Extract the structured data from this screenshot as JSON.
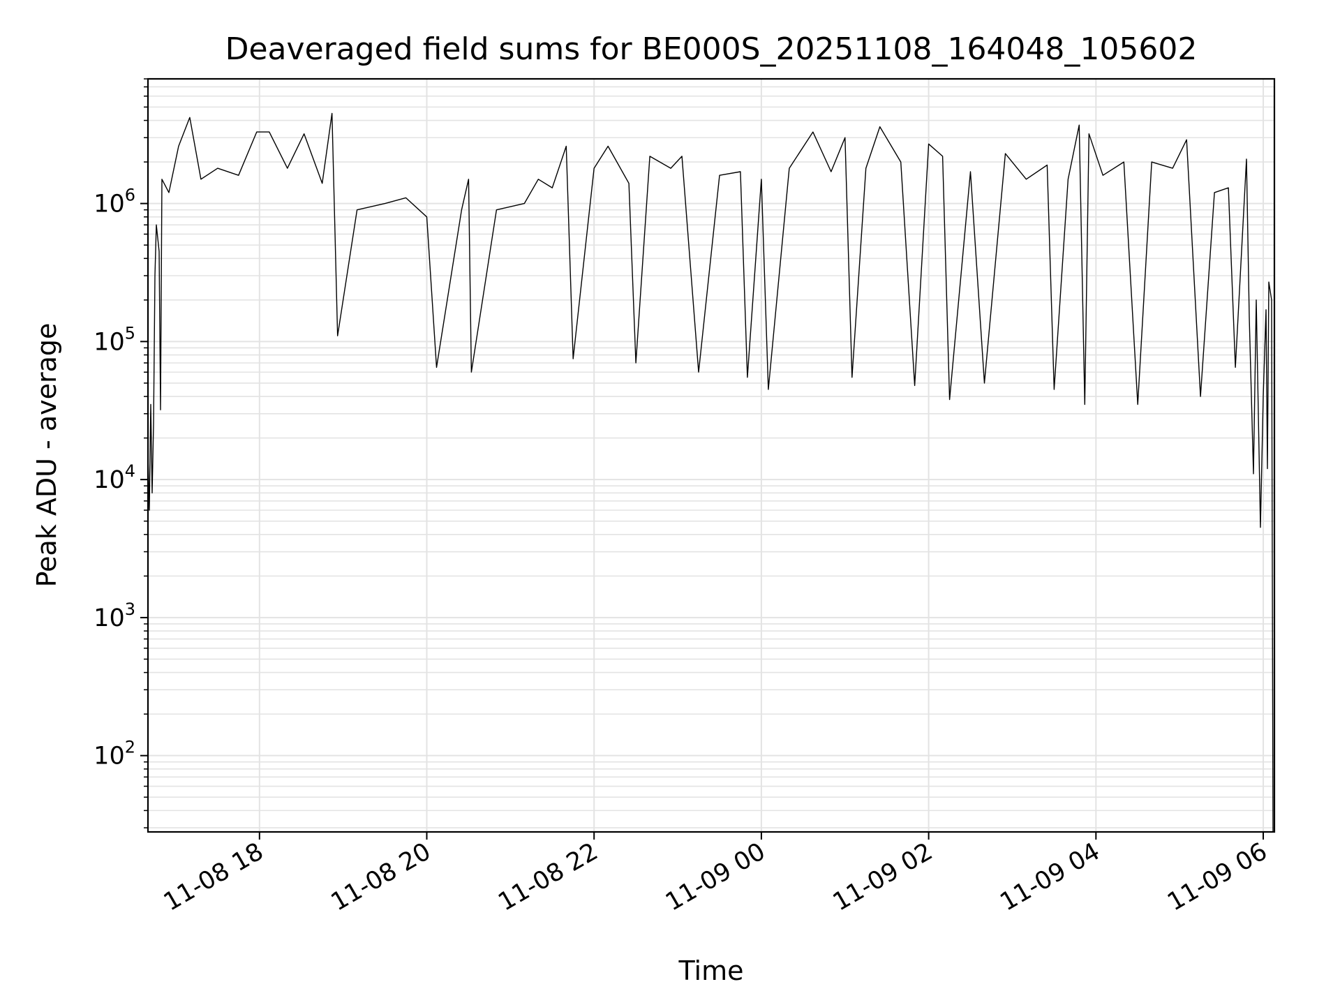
{
  "chart_data": {
    "type": "line",
    "title": "Deaveraged field sums for BE000S_20251108_164048_105602",
    "xlabel": "Time",
    "ylabel": "Peak ADU - average",
    "yscale": "log",
    "ylim": [
      28,
      8000000
    ],
    "xlim": [
      "2025-11-08 16:40",
      "2025-11-09 06:08"
    ],
    "x_ticks": [
      {
        "value": "2025-11-08 18:00",
        "label": "11-08 18"
      },
      {
        "value": "2025-11-08 20:00",
        "label": "11-08 20"
      },
      {
        "value": "2025-11-08 22:00",
        "label": "11-08 22"
      },
      {
        "value": "2025-11-09 00:00",
        "label": "11-09 00"
      },
      {
        "value": "2025-11-09 02:00",
        "label": "11-09 02"
      },
      {
        "value": "2025-11-09 04:00",
        "label": "11-09 04"
      },
      {
        "value": "2025-11-09 06:00",
        "label": "11-09 06"
      }
    ],
    "y_ticks": [
      {
        "value": 100,
        "base": "10",
        "exp": "2"
      },
      {
        "value": 1000,
        "base": "10",
        "exp": "3"
      },
      {
        "value": 10000,
        "base": "10",
        "exp": "4"
      },
      {
        "value": 100000,
        "base": "10",
        "exp": "5"
      },
      {
        "value": 1000000,
        "base": "10",
        "exp": "6"
      }
    ],
    "grid": true,
    "line_color": "#000000",
    "series": [
      {
        "name": "",
        "points": [
          [
            "2025-11-08 16:40",
            15000
          ],
          [
            "2025-11-08 16:41",
            6000
          ],
          [
            "2025-11-08 16:42",
            35000
          ],
          [
            "2025-11-08 16:43",
            8000
          ],
          [
            "2025-11-08 16:44",
            25000
          ],
          [
            "2025-11-08 16:45",
            300000
          ],
          [
            "2025-11-08 16:46",
            700000
          ],
          [
            "2025-11-08 16:48",
            450000
          ],
          [
            "2025-11-08 16:49",
            32000
          ],
          [
            "2025-11-08 16:50",
            1500000
          ],
          [
            "2025-11-08 16:55",
            1200000
          ],
          [
            "2025-11-08 17:02",
            2600000
          ],
          [
            "2025-11-08 17:10",
            4200000
          ],
          [
            "2025-11-08 17:18",
            1500000
          ],
          [
            "2025-11-08 17:30",
            1800000
          ],
          [
            "2025-11-08 17:45",
            1600000
          ],
          [
            "2025-11-08 17:58",
            3300000
          ],
          [
            "2025-11-08 18:07",
            3300000
          ],
          [
            "2025-11-08 18:20",
            1800000
          ],
          [
            "2025-11-08 18:32",
            3200000
          ],
          [
            "2025-11-08 18:45",
            1400000
          ],
          [
            "2025-11-08 18:52",
            4500000
          ],
          [
            "2025-11-08 18:56",
            110000
          ],
          [
            "2025-11-08 19:10",
            900000
          ],
          [
            "2025-11-08 19:30",
            1000000
          ],
          [
            "2025-11-08 19:45",
            1100000
          ],
          [
            "2025-11-08 20:00",
            800000
          ],
          [
            "2025-11-08 20:07",
            65000
          ],
          [
            "2025-11-08 20:25",
            900000
          ],
          [
            "2025-11-08 20:30",
            1500000
          ],
          [
            "2025-11-08 20:32",
            60000
          ],
          [
            "2025-11-08 20:50",
            900000
          ],
          [
            "2025-11-08 21:10",
            1000000
          ],
          [
            "2025-11-08 21:20",
            1500000
          ],
          [
            "2025-11-08 21:30",
            1300000
          ],
          [
            "2025-11-08 21:40",
            2600000
          ],
          [
            "2025-11-08 21:45",
            75000
          ],
          [
            "2025-11-08 22:00",
            1800000
          ],
          [
            "2025-11-08 22:10",
            2600000
          ],
          [
            "2025-11-08 22:25",
            1400000
          ],
          [
            "2025-11-08 22:30",
            70000
          ],
          [
            "2025-11-08 22:40",
            2200000
          ],
          [
            "2025-11-08 22:55",
            1800000
          ],
          [
            "2025-11-08 23:03",
            2200000
          ],
          [
            "2025-11-08 23:15",
            60000
          ],
          [
            "2025-11-08 23:30",
            1600000
          ],
          [
            "2025-11-08 23:45",
            1700000
          ],
          [
            "2025-11-08 23:50",
            55000
          ],
          [
            "2025-11-09 00:00",
            1500000
          ],
          [
            "2025-11-09 00:05",
            45000
          ],
          [
            "2025-11-09 00:20",
            1800000
          ],
          [
            "2025-11-09 00:37",
            3300000
          ],
          [
            "2025-11-09 00:50",
            1700000
          ],
          [
            "2025-11-09 01:00",
            3000000
          ],
          [
            "2025-11-09 01:05",
            55000
          ],
          [
            "2025-11-09 01:15",
            1800000
          ],
          [
            "2025-11-09 01:25",
            3600000
          ],
          [
            "2025-11-09 01:40",
            2000000
          ],
          [
            "2025-11-09 01:50",
            48000
          ],
          [
            "2025-11-09 02:00",
            2700000
          ],
          [
            "2025-11-09 02:10",
            2200000
          ],
          [
            "2025-11-09 02:15",
            38000
          ],
          [
            "2025-11-09 02:30",
            1700000
          ],
          [
            "2025-11-09 02:40",
            50000
          ],
          [
            "2025-11-09 02:55",
            2300000
          ],
          [
            "2025-11-09 03:10",
            1500000
          ],
          [
            "2025-11-09 03:25",
            1900000
          ],
          [
            "2025-11-09 03:30",
            45000
          ],
          [
            "2025-11-09 03:40",
            1500000
          ],
          [
            "2025-11-09 03:48",
            3700000
          ],
          [
            "2025-11-09 03:52",
            35000
          ],
          [
            "2025-11-09 03:55",
            3200000
          ],
          [
            "2025-11-09 04:05",
            1600000
          ],
          [
            "2025-11-09 04:20",
            2000000
          ],
          [
            "2025-11-09 04:30",
            35000
          ],
          [
            "2025-11-09 04:40",
            2000000
          ],
          [
            "2025-11-09 04:55",
            1800000
          ],
          [
            "2025-11-09 05:05",
            2900000
          ],
          [
            "2025-11-09 05:15",
            40000
          ],
          [
            "2025-11-09 05:25",
            1200000
          ],
          [
            "2025-11-09 05:35",
            1300000
          ],
          [
            "2025-11-09 05:40",
            65000
          ],
          [
            "2025-11-09 05:48",
            2100000
          ],
          [
            "2025-11-09 05:50",
            150000
          ],
          [
            "2025-11-09 05:53",
            11000
          ],
          [
            "2025-11-09 05:55",
            200000
          ],
          [
            "2025-11-09 05:58",
            4500
          ],
          [
            "2025-11-09 06:00",
            40000
          ],
          [
            "2025-11-09 06:02",
            170000
          ],
          [
            "2025-11-09 06:03",
            12000
          ],
          [
            "2025-11-09 06:04",
            270000
          ],
          [
            "2025-11-09 06:06",
            200000
          ],
          [
            "2025-11-09 06:07",
            28
          ]
        ]
      }
    ]
  }
}
